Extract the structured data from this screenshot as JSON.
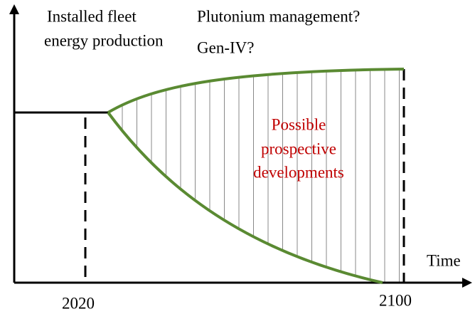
{
  "labels": {
    "y_axis": [
      "Installed fleet",
      "energy production"
    ],
    "questions": [
      "Plutonium management?",
      "Gen-IV?"
    ],
    "region": [
      "Possible",
      "prospective",
      "developments"
    ],
    "x_axis": "Time",
    "years": [
      "2020",
      "2100"
    ]
  }
}
